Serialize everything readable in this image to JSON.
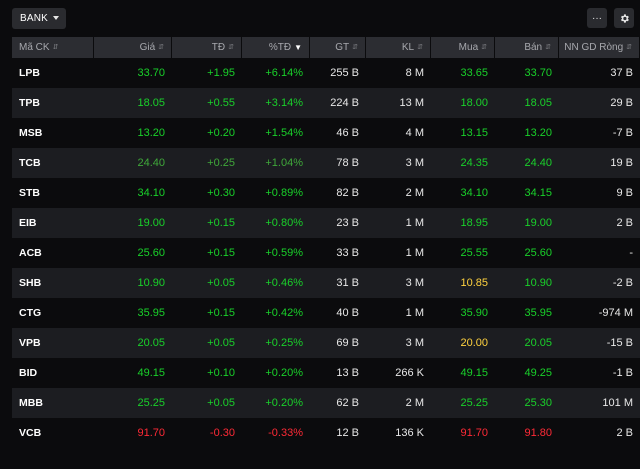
{
  "toolbar": {
    "group_label": "BANK",
    "more_label": "···",
    "settings_icon": "gear-icon"
  },
  "colors": {
    "up": "#19d12a",
    "down": "#ff2a36",
    "reference": "#ffd23f",
    "background": "#0b0b0d",
    "alt_row": "#1c1d21",
    "header_bg": "#2c2d32"
  },
  "columns": [
    {
      "label": "Mã CK",
      "sortable": true
    },
    {
      "label": "Giá",
      "sortable": true
    },
    {
      "label": "TĐ",
      "sortable": true
    },
    {
      "label": "%TĐ",
      "sortable": true,
      "sorted": "desc"
    },
    {
      "label": "GT",
      "sortable": true
    },
    {
      "label": "KL",
      "sortable": true
    },
    {
      "label": "Mua",
      "sortable": true
    },
    {
      "label": "Bán",
      "sortable": true
    },
    {
      "label": "NN GD Ròng",
      "sortable": true
    }
  ],
  "rows": [
    {
      "symbol": "LPB",
      "price": "33.70",
      "change": "+1.95",
      "pct": "+6.14%",
      "value": "255 B",
      "volume": "8 M",
      "bid": "33.65",
      "ask": "33.70",
      "foreign_net": "37 B",
      "dir": "up",
      "bid_dir": "up",
      "ask_dir": "up"
    },
    {
      "symbol": "TPB",
      "price": "18.05",
      "change": "+0.55",
      "pct": "+3.14%",
      "value": "224 B",
      "volume": "13 M",
      "bid": "18.00",
      "ask": "18.05",
      "foreign_net": "29 B",
      "dir": "up",
      "bid_dir": "up",
      "ask_dir": "up"
    },
    {
      "symbol": "MSB",
      "price": "13.20",
      "change": "+0.20",
      "pct": "+1.54%",
      "value": "46 B",
      "volume": "4 M",
      "bid": "13.15",
      "ask": "13.20",
      "foreign_net": "-7 B",
      "dir": "up",
      "bid_dir": "up",
      "ask_dir": "up"
    },
    {
      "symbol": "TCB",
      "price": "24.40",
      "change": "+0.25",
      "pct": "+1.04%",
      "value": "78 B",
      "volume": "3 M",
      "bid": "24.35",
      "ask": "24.40",
      "foreign_net": "19 B",
      "dir": "up",
      "bid_dir": "up",
      "ask_dir": "up",
      "faded": true
    },
    {
      "symbol": "STB",
      "price": "34.10",
      "change": "+0.30",
      "pct": "+0.89%",
      "value": "82 B",
      "volume": "2 M",
      "bid": "34.10",
      "ask": "34.15",
      "foreign_net": "9 B",
      "dir": "up",
      "bid_dir": "up",
      "ask_dir": "up"
    },
    {
      "symbol": "EIB",
      "price": "19.00",
      "change": "+0.15",
      "pct": "+0.80%",
      "value": "23 B",
      "volume": "1 M",
      "bid": "18.95",
      "ask": "19.00",
      "foreign_net": "2 B",
      "dir": "up",
      "bid_dir": "up",
      "ask_dir": "up"
    },
    {
      "symbol": "ACB",
      "price": "25.60",
      "change": "+0.15",
      "pct": "+0.59%",
      "value": "33 B",
      "volume": "1 M",
      "bid": "25.55",
      "ask": "25.60",
      "foreign_net": "-",
      "dir": "up",
      "bid_dir": "up",
      "ask_dir": "up"
    },
    {
      "symbol": "SHB",
      "price": "10.90",
      "change": "+0.05",
      "pct": "+0.46%",
      "value": "31 B",
      "volume": "3 M",
      "bid": "10.85",
      "ask": "10.90",
      "foreign_net": "-2 B",
      "dir": "up",
      "bid_dir": "ref",
      "ask_dir": "up"
    },
    {
      "symbol": "CTG",
      "price": "35.95",
      "change": "+0.15",
      "pct": "+0.42%",
      "value": "40 B",
      "volume": "1 M",
      "bid": "35.90",
      "ask": "35.95",
      "foreign_net": "-974 M",
      "dir": "up",
      "bid_dir": "up",
      "ask_dir": "up"
    },
    {
      "symbol": "VPB",
      "price": "20.05",
      "change": "+0.05",
      "pct": "+0.25%",
      "value": "69 B",
      "volume": "3 M",
      "bid": "20.00",
      "ask": "20.05",
      "foreign_net": "-15 B",
      "dir": "up",
      "bid_dir": "ref",
      "ask_dir": "up"
    },
    {
      "symbol": "BID",
      "price": "49.15",
      "change": "+0.10",
      "pct": "+0.20%",
      "value": "13 B",
      "volume": "266 K",
      "bid": "49.15",
      "ask": "49.25",
      "foreign_net": "-1 B",
      "dir": "up",
      "bid_dir": "up",
      "ask_dir": "up"
    },
    {
      "symbol": "MBB",
      "price": "25.25",
      "change": "+0.05",
      "pct": "+0.20%",
      "value": "62 B",
      "volume": "2 M",
      "bid": "25.25",
      "ask": "25.30",
      "foreign_net": "101 M",
      "dir": "up",
      "bid_dir": "up",
      "ask_dir": "up"
    },
    {
      "symbol": "VCB",
      "price": "91.70",
      "change": "-0.30",
      "pct": "-0.33%",
      "value": "12 B",
      "volume": "136 K",
      "bid": "91.70",
      "ask": "91.80",
      "foreign_net": "2 B",
      "dir": "down",
      "bid_dir": "down",
      "ask_dir": "down"
    }
  ]
}
